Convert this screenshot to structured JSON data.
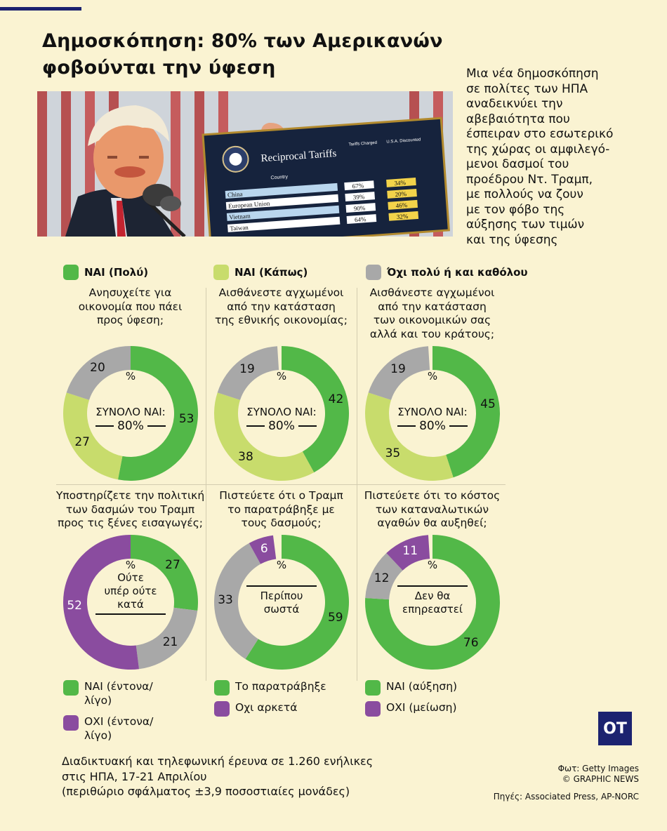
{
  "title_line1": "Δημοσκόπηση: 80% των Αμερικανών",
  "title_line2": "φοβούνται την ύφεση",
  "intro": "Μια νέα δημοσκόπηση\nσε πολίτες των ΗΠΑ\nαναδεικνύει την\nαβεβαιότητα που\nέσπειραν στο εσωτερικό\n της χώρας οι αμφιλεγό-\nμενοι δασμοί του\nπροέδρου Ντ. Τραμπ,\nμε πολλούς να ζουν\nμε τον φόβο της\nαύξησης των τιμών\nκαι της ύφεσης",
  "photo": {
    "board_title": "Reciprocal Tariffs",
    "col_country": "Country",
    "col_charged": "Tariffs Charged to the U.S.A.",
    "col_discounted": "U.S.A. Discounted Reciprocal Tariffs",
    "rows": [
      {
        "country": "China",
        "charged": "67%",
        "discounted": "34%"
      },
      {
        "country": "European Union",
        "charged": "39%",
        "discounted": "20%"
      },
      {
        "country": "Vietnam",
        "charged": "90%",
        "discounted": "46%"
      },
      {
        "country": "Taiwan",
        "charged": "64%",
        "discounted": "32%"
      }
    ]
  },
  "colors": {
    "green": "#52b848",
    "lightgreen": "#c8dc6c",
    "gray": "#a8a8a8",
    "purple": "#8a4c9f",
    "navy": "#1c2370",
    "background": "#faf3d2"
  },
  "legend_top": [
    {
      "label": "ΝΑΙ (Πολύ)",
      "color": "#52b848"
    },
    {
      "label": "ΝΑΙ (Κάπως)",
      "color": "#c8dc6c"
    },
    {
      "label": "Όχι πολύ ή και καθόλου",
      "color": "#a8a8a8"
    }
  ],
  "charts": {
    "c1": {
      "question": "Ανησυχείτε για\nοικονομία που πάει\nπρος ύφεση;",
      "pct_sign": "%",
      "total_label": "ΣΥΝΟΛΟ ΝΑΙ:",
      "total_value": "80%"
    },
    "c2": {
      "question": "Αισθάνεστε αγχωμένοι\nαπό την κατάσταση\nτης εθνικής οικονομίας;",
      "pct_sign": "%",
      "total_label": "ΣΥΝΟΛΟ ΝΑΙ:",
      "total_value": "80%"
    },
    "c3": {
      "question": "Αισθάνεστε αγχωμένοι\nαπό την κατάσταση\nτων οικονομικών σας\nαλλά και του κράτους;",
      "pct_sign": "%",
      "total_label": "ΣΥΝΟΛΟ ΝΑΙ:",
      "total_value": "80%"
    },
    "c4": {
      "question": "Υποστηρίζετε την πολιτική\nτων δασμών του Τραμπ\nπρος τις ξένες εισαγωγές;",
      "pct_sign": "%",
      "center": "Ούτε\nυπέρ ούτε\nκατά"
    },
    "c5": {
      "question": "Πιστεύετε ότι ο Τραμπ\nτο παρατράβηξε με\nτους δασμούς;",
      "pct_sign": "%",
      "center": "Περίπου\nσωστά"
    },
    "c6": {
      "question": "Πιστεύετε ότι το κόστος\nτων καταναλωτικών\nαγαθών θα αυξηθεί;",
      "pct_sign": "%",
      "center": "Δεν θα\nεπηρεαστεί"
    }
  },
  "chart_data": [
    {
      "type": "pie",
      "id": "c1",
      "labels": [
        "ΝΑΙ (Πολύ)",
        "ΝΑΙ (Κάπως)",
        "Όχι πολύ ή και καθόλου"
      ],
      "values": [
        53,
        27,
        20
      ],
      "colors": [
        "#52b848",
        "#c8dc6c",
        "#a8a8a8"
      ],
      "label_colors": [
        "#111",
        "#111",
        "#111"
      ]
    },
    {
      "type": "pie",
      "id": "c2",
      "labels": [
        "ΝΑΙ (Πολύ)",
        "ΝΑΙ (Κάπως)",
        "Όχι πολύ ή και καθόλου"
      ],
      "values": [
        42,
        38,
        19
      ],
      "colors": [
        "#52b848",
        "#c8dc6c",
        "#a8a8a8"
      ],
      "label_colors": [
        "#111",
        "#111",
        "#111"
      ]
    },
    {
      "type": "pie",
      "id": "c3",
      "labels": [
        "ΝΑΙ (Πολύ)",
        "ΝΑΙ (Κάπως)",
        "Όχι πολύ ή και καθόλου"
      ],
      "values": [
        45,
        35,
        19
      ],
      "colors": [
        "#52b848",
        "#c8dc6c",
        "#a8a8a8"
      ],
      "label_colors": [
        "#111",
        "#111",
        "#111"
      ]
    },
    {
      "type": "pie",
      "id": "c4",
      "labels": [
        "ΝΑΙ (έντονα/λίγο)",
        "Ούτε υπέρ ούτε κατά",
        "ΟΧΙ (έντονα/λίγο)"
      ],
      "values": [
        27,
        21,
        52
      ],
      "colors": [
        "#52b848",
        "#a8a8a8",
        "#8a4c9f"
      ],
      "label_colors": [
        "#111",
        "#111",
        "#fff"
      ]
    },
    {
      "type": "pie",
      "id": "c5",
      "labels": [
        "Το παρατράβηξε",
        "Περίπου σωστά",
        "Οχι αρκετά"
      ],
      "values": [
        59,
        33,
        6
      ],
      "colors": [
        "#52b848",
        "#a8a8a8",
        "#8a4c9f"
      ],
      "label_colors": [
        "#111",
        "#111",
        "#fff"
      ]
    },
    {
      "type": "pie",
      "id": "c6",
      "labels": [
        "ΝΑΙ (αύξηση)",
        "Δεν θα επηρεαστεί",
        "ΟΧΙ (μείωση)"
      ],
      "values": [
        76,
        12,
        11
      ],
      "colors": [
        "#52b848",
        "#a8a8a8",
        "#8a4c9f"
      ],
      "label_colors": [
        "#111",
        "#111",
        "#fff"
      ]
    }
  ],
  "legend_bottom": {
    "c4": [
      {
        "label": "ΝΑΙ (έντονα/\nλίγο)",
        "color": "#52b848"
      },
      {
        "label": "ΟΧΙ (έντονα/\nλίγο)",
        "color": "#8a4c9f"
      }
    ],
    "c5": [
      {
        "label": "Το παρατράβηξε",
        "color": "#52b848"
      },
      {
        "label": "Οχι αρκετά",
        "color": "#8a4c9f"
      }
    ],
    "c6": [
      {
        "label": "ΝΑΙ (αύξηση)",
        "color": "#52b848"
      },
      {
        "label": "ΟΧΙ (μείωση)",
        "color": "#8a4c9f"
      }
    ]
  },
  "footer": "Διαδικτυακή και τηλεφωνική έρευνα σε 1.260 ενήλικες\nστις ΗΠΑ, 17-21 Απριλίου\n(περιθώριο σφάλματος ±3,9 ποσοστιαίες μονάδες)",
  "credits": {
    "photo": "Φωτ: Getty Images",
    "copyright": "© GRAPHIC NEWS",
    "sources": "Πηγές: Associated Press, AP-NORC"
  },
  "logo": "ΟΤ"
}
